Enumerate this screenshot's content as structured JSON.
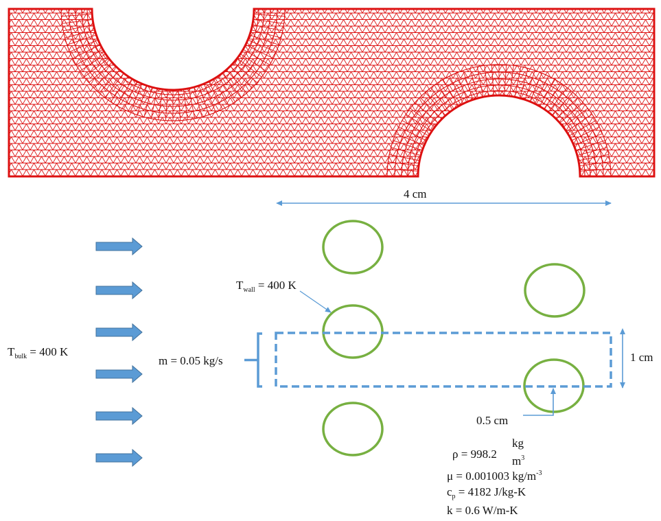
{
  "colors": {
    "mesh": "#dd1111",
    "dimension": "#5b9bd5",
    "flow_arrow": "#5b9bd5",
    "flow_arrow_border": "#41719c",
    "tube": "#77b041",
    "domain_box": "#5b9bd5"
  },
  "labels": {
    "pitch": "4 cm",
    "height": "1 cm",
    "radius": "0.5 cm",
    "t_bulk_sym": "T",
    "t_bulk_sub": "bulk",
    "t_bulk_val": "= 400 K",
    "t_wall_sym": "T",
    "t_wall_sub": "wall",
    "t_wall_val": "= 400 K",
    "mass_flow": "m = 0.05 kg/s"
  },
  "properties": {
    "rho_lhs": "ρ = 998.2",
    "rho_num": "kg",
    "rho_den": "m",
    "rho_den_exp": "3",
    "mu": "μ = 0.001003 kg/m",
    "mu_exp": "-3",
    "cp_sym": "c",
    "cp_sub": "p",
    "cp_val": " = 4182 J/kg-K",
    "k": "k = 0.6 W/m-K"
  }
}
